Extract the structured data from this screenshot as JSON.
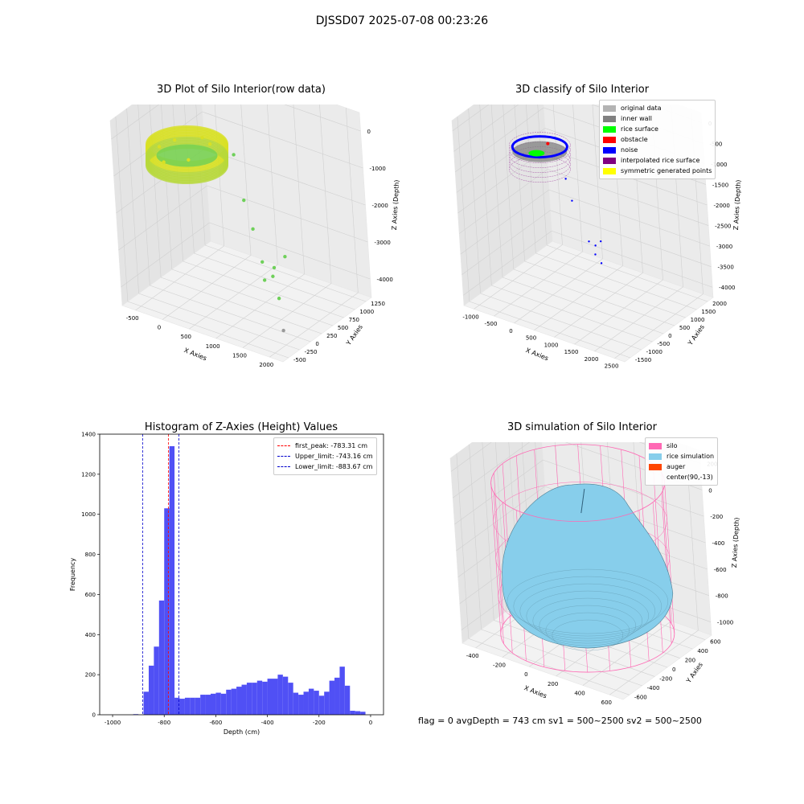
{
  "figure": {
    "suptitle": "DJSSD07 2025-07-08 00:23:26",
    "footer": "flag = 0     avgDepth = 743 cm  sv1 = 500~2500  sv2 = 500~2500"
  },
  "chart_data": [
    {
      "type": "scatter",
      "title": "3D Plot of Silo Interior(row data)",
      "xlabel": "X Axies",
      "ylabel": "Y Axies",
      "zlabel": "Z Axies (Depth)",
      "x_ticks": [
        "-500",
        "0",
        "500",
        "1000",
        "1500",
        "2000"
      ],
      "y_ticks": [
        "-500",
        "-250",
        "0",
        "250",
        "500",
        "750",
        "1000",
        "1250"
      ],
      "z_ticks": [
        "0",
        "-1000",
        "-2000",
        "-3000",
        "-4000"
      ],
      "xlim": [
        -600,
        2000
      ],
      "ylim": [
        -600,
        1300
      ],
      "zlim": [
        -4200,
        200
      ],
      "series": [
        {
          "color": "#d8e024",
          "points": [
            [
              -200,
              200,
              -700
            ],
            [
              100,
              400,
              -650
            ],
            [
              300,
              300,
              -620
            ],
            [
              -300,
              0,
              -750
            ],
            [
              0,
              -300,
              -720
            ],
            [
              250,
              -100,
              -700
            ]
          ]
        },
        {
          "color": "#6fd05a",
          "points": [
            [
              600,
              400,
              -800
            ],
            [
              800,
              300,
              -1700
            ],
            [
              1000,
              200,
              -2200
            ],
            [
              1200,
              100,
              -2800
            ],
            [
              1300,
              0,
              -3100
            ],
            [
              1400,
              50,
              -3000
            ],
            [
              1350,
              150,
              -2900
            ],
            [
              1500,
              200,
              -2600
            ],
            [
              1600,
              -100,
              -3300
            ]
          ]
        },
        {
          "color": "#999999",
          "points": [
            [
              1800,
              -300,
              -3800
            ]
          ]
        }
      ]
    },
    {
      "type": "scatter",
      "title": "3D classify of Silo Interior",
      "xlabel": "X Axies",
      "ylabel": "Y Axies",
      "zlabel": "Z Axies (Depth)",
      "x_ticks": [
        "-1000",
        "-500",
        "0",
        "500",
        "1000",
        "1500",
        "2000",
        "2500"
      ],
      "y_ticks": [
        "-1500",
        "-1000",
        "-500",
        "0",
        "500",
        "1000",
        "1500",
        "2000"
      ],
      "z_ticks": [
        "0",
        "-500",
        "-1000",
        "-1500",
        "-2000",
        "-2500",
        "-3000",
        "-3500",
        "-4000"
      ],
      "xlim": [
        -1200,
        2800
      ],
      "ylim": [
        -1700,
        2300
      ],
      "zlim": [
        -4100,
        200
      ],
      "legend": [
        {
          "label": "original data",
          "color": "#b3b3b3"
        },
        {
          "label": "inner wall",
          "color": "#808080"
        },
        {
          "label": "rice surface",
          "color": "#00ff00"
        },
        {
          "label": "obstacle",
          "color": "#ff0000"
        },
        {
          "label": "noise",
          "color": "#0000ff"
        },
        {
          "label": "interpolated rice surface",
          "color": "#800080"
        },
        {
          "label": "symmetric generated points",
          "color": "#ffff00"
        }
      ]
    },
    {
      "type": "bar",
      "title": "Histogram of Z-Axies (Height) Values",
      "xlabel": "Depth (cm)",
      "ylabel": "Frequency",
      "xlim": [
        -1050,
        50
      ],
      "ylim": [
        0,
        1400
      ],
      "x_ticks": [
        -1000,
        -800,
        -600,
        -400,
        -200,
        0
      ],
      "y_ticks": [
        0,
        200,
        400,
        600,
        800,
        1000,
        1200,
        1400
      ],
      "bin_width": 20,
      "bin_start": -1000,
      "values": [
        0,
        0,
        0,
        0,
        3,
        0,
        115,
        245,
        340,
        570,
        1030,
        1340,
        85,
        80,
        85,
        85,
        85,
        100,
        100,
        105,
        110,
        105,
        125,
        130,
        140,
        150,
        160,
        160,
        170,
        165,
        180,
        180,
        200,
        190,
        160,
        110,
        100,
        115,
        130,
        120,
        95,
        115,
        170,
        185,
        240,
        145,
        20,
        18,
        15
      ],
      "bar_color": "#5050f5",
      "vlines": [
        {
          "label": "first_peak: -783.31 cm",
          "x": -783.31,
          "color": "#ff0000"
        },
        {
          "label": "Upper_limit: -743.16 cm",
          "x": -743.16,
          "color": "#0000cc"
        },
        {
          "label": "Lower_limit: -883.67 cm",
          "x": -883.67,
          "color": "#0000cc"
        }
      ]
    },
    {
      "type": "area",
      "title": "3D simulation of Silo Interior",
      "xlabel": "X Axies",
      "ylabel": "Y Axies",
      "zlabel": "Z Axies (Depth)",
      "x_ticks": [
        "-400",
        "-200",
        "0",
        "200",
        "400",
        "600"
      ],
      "y_ticks": [
        "-600",
        "-400",
        "-200",
        "0",
        "200",
        "400",
        "600"
      ],
      "z_ticks": [
        "200",
        "0",
        "-200",
        "-400",
        "-600",
        "-800",
        "-1000"
      ],
      "xlim": [
        -550,
        700
      ],
      "ylim": [
        -700,
        700
      ],
      "zlim": [
        -1050,
        300
      ],
      "legend": [
        {
          "label": "silo",
          "color": "#ff69b4"
        },
        {
          "label": "rice simulation",
          "color": "#87ceeb"
        },
        {
          "label": "auger",
          "color": "#ff4500"
        },
        {
          "label": "center(90,-13)",
          "color": ""
        }
      ]
    }
  ]
}
